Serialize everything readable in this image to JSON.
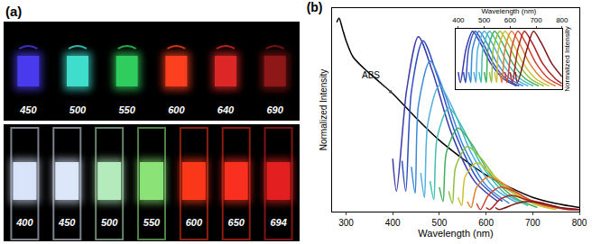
{
  "panel_a": {
    "title": "(a)",
    "rows": [
      {
        "labels": [
          450,
          500,
          550,
          600,
          640,
          690
        ],
        "colors": [
          "#4b3cf0",
          "#40e0d0",
          "#30d060",
          "#ff4020",
          "#e02828",
          "#901818"
        ]
      },
      {
        "labels": [
          400,
          450,
          500,
          550,
          600,
          650,
          694
        ],
        "colors": [
          "#dde8ff",
          "#e0ecff",
          "#b8f0c0",
          "#8ee87a",
          "#ff3a1a",
          "#ff3020",
          "#e82020"
        ]
      }
    ]
  },
  "chart_data": [
    {
      "type": "line",
      "title": "(b)",
      "x_label": "Wavelength (nm)",
      "y_label": "Normalized Intensity",
      "xlim": [
        270,
        800
      ],
      "xticks": [
        300,
        400,
        500,
        600,
        700,
        800
      ],
      "ylim": [
        0,
        1
      ],
      "tick_labels": "x",
      "grid": false,
      "annotations": [
        {
          "text": "ABS",
          "x": 400,
          "y": 0.58
        }
      ],
      "series": [
        {
          "color": "#000000",
          "x": [
            280,
            285,
            292,
            300,
            315,
            340,
            370,
            400,
            450,
            500,
            550,
            600,
            650,
            700,
            750,
            800
          ],
          "values": [
            0.93,
            0.95,
            0.9,
            0.84,
            0.76,
            0.7,
            0.64,
            0.58,
            0.46,
            0.35,
            0.26,
            0.18,
            0.12,
            0.07,
            0.04,
            0.02
          ]
        },
        {
          "color": "#3a3aa8",
          "x": [
            400,
            408,
            430,
            455,
            485,
            525,
            575,
            625
          ],
          "values": [
            0.26,
            0.1,
            0.6,
            0.86,
            0.69,
            0.39,
            0.15,
            0.05
          ]
        },
        {
          "color": "#3050c0",
          "x": [
            420,
            428,
            440,
            465,
            495,
            535,
            585,
            635
          ],
          "values": [
            0.25,
            0.1,
            0.59,
            0.84,
            0.67,
            0.38,
            0.15,
            0.05
          ]
        },
        {
          "color": "#3a8ad8",
          "x": [
            440,
            448,
            455,
            480,
            510,
            550,
            600,
            650
          ],
          "values": [
            0.22,
            0.09,
            0.52,
            0.74,
            0.59,
            0.33,
            0.13,
            0.04
          ]
        },
        {
          "color": "#50b0e0",
          "x": [
            460,
            468,
            475,
            500,
            530,
            570,
            620,
            670
          ],
          "values": [
            0.19,
            0.07,
            0.43,
            0.62,
            0.5,
            0.28,
            0.11,
            0.04
          ]
        },
        {
          "color": "#40c0b0",
          "x": [
            480,
            488,
            495,
            520,
            550,
            590,
            640,
            690
          ],
          "values": [
            0.15,
            0.06,
            0.36,
            0.51,
            0.41,
            0.23,
            0.09,
            0.03
          ]
        },
        {
          "color": "#40b060",
          "x": [
            500,
            508,
            515,
            540,
            570,
            610,
            660,
            710
          ],
          "values": [
            0.12,
            0.05,
            0.29,
            0.41,
            0.33,
            0.18,
            0.07,
            0.02
          ]
        },
        {
          "color": "#90c040",
          "x": [
            520,
            528,
            535,
            560,
            590,
            630,
            680,
            730
          ],
          "values": [
            0.1,
            0.04,
            0.22,
            0.32,
            0.26,
            0.14,
            0.06,
            0.02
          ]
        },
        {
          "color": "#d0c030",
          "x": [
            540,
            548,
            555,
            580,
            610,
            650,
            700,
            750
          ],
          "values": [
            0.07,
            0.03,
            0.17,
            0.24,
            0.19,
            0.11,
            0.04,
            0.01
          ]
        },
        {
          "color": "#e08030",
          "x": [
            560,
            568,
            580,
            605,
            635,
            675,
            725,
            775
          ],
          "values": [
            0.05,
            0.02,
            0.12,
            0.17,
            0.14,
            0.08,
            0.03,
            0.01
          ]
        },
        {
          "color": "#d04030",
          "x": [
            580,
            588,
            605,
            630,
            660,
            700,
            750,
            800
          ],
          "values": [
            0.04,
            0.01,
            0.08,
            0.12,
            0.1,
            0.05,
            0.02,
            0.01
          ]
        },
        {
          "color": "#b02020",
          "x": [
            600,
            608,
            630,
            655,
            685,
            725,
            775,
            800
          ],
          "values": [
            0.02,
            0.01,
            0.06,
            0.08,
            0.06,
            0.04,
            0.01,
            0.01
          ]
        },
        {
          "color": "#801818",
          "x": [
            620,
            628,
            665,
            690,
            720,
            760,
            800
          ],
          "values": [
            0.02,
            0.01,
            0.04,
            0.05,
            0.04,
            0.02,
            0.01
          ]
        }
      ]
    },
    {
      "type": "line",
      "x_label": "Wavelength (nm)",
      "y_label": "Normalized Intensity",
      "xlim": [
        390,
        800
      ],
      "xticks": [
        400,
        500,
        600,
        700,
        800
      ],
      "ylim": [
        0,
        1.05
      ],
      "tick_labels": "x",
      "grid": false,
      "series": [
        {
          "color": "#3a3aa8",
          "x": [
            400,
            408,
            430,
            455,
            485,
            525,
            575,
            625
          ],
          "values": [
            0.3,
            0.12,
            0.7,
            1,
            0.8,
            0.45,
            0.18,
            0.06
          ]
        },
        {
          "color": "#3050c0",
          "x": [
            420,
            428,
            440,
            465,
            495,
            535,
            585,
            635
          ],
          "values": [
            0.3,
            0.12,
            0.7,
            1,
            0.8,
            0.45,
            0.18,
            0.06
          ]
        },
        {
          "color": "#3a8ad8",
          "x": [
            440,
            448,
            455,
            480,
            510,
            550,
            600,
            650
          ],
          "values": [
            0.3,
            0.12,
            0.7,
            1,
            0.8,
            0.45,
            0.18,
            0.06
          ]
        },
        {
          "color": "#50b0e0",
          "x": [
            460,
            468,
            475,
            500,
            530,
            570,
            620,
            670
          ],
          "values": [
            0.3,
            0.12,
            0.7,
            1,
            0.8,
            0.45,
            0.18,
            0.06
          ]
        },
        {
          "color": "#40c0b0",
          "x": [
            480,
            488,
            495,
            520,
            550,
            590,
            640,
            690
          ],
          "values": [
            0.3,
            0.12,
            0.7,
            1,
            0.8,
            0.45,
            0.18,
            0.06
          ]
        },
        {
          "color": "#40b060",
          "x": [
            500,
            508,
            515,
            540,
            570,
            610,
            660,
            710
          ],
          "values": [
            0.3,
            0.12,
            0.7,
            1,
            0.8,
            0.45,
            0.18,
            0.06
          ]
        },
        {
          "color": "#90c040",
          "x": [
            520,
            528,
            535,
            560,
            590,
            630,
            680,
            730
          ],
          "values": [
            0.3,
            0.12,
            0.7,
            1,
            0.8,
            0.45,
            0.18,
            0.06
          ]
        },
        {
          "color": "#d0c030",
          "x": [
            540,
            548,
            555,
            580,
            610,
            650,
            700,
            750
          ],
          "values": [
            0.3,
            0.12,
            0.7,
            1,
            0.8,
            0.45,
            0.18,
            0.06
          ]
        },
        {
          "color": "#e08030",
          "x": [
            560,
            568,
            580,
            605,
            635,
            675,
            725,
            775
          ],
          "values": [
            0.3,
            0.12,
            0.7,
            1,
            0.8,
            0.45,
            0.18,
            0.06
          ]
        },
        {
          "color": "#d04030",
          "x": [
            580,
            588,
            605,
            630,
            660,
            700,
            750,
            800
          ],
          "values": [
            0.3,
            0.12,
            0.7,
            1,
            0.8,
            0.45,
            0.18,
            0.06
          ]
        },
        {
          "color": "#b02020",
          "x": [
            600,
            608,
            630,
            655,
            685,
            725,
            775,
            800
          ],
          "values": [
            0.3,
            0.12,
            0.7,
            1,
            0.8,
            0.45,
            0.18,
            0.1
          ]
        },
        {
          "color": "#801818",
          "x": [
            620,
            628,
            665,
            690,
            720,
            760,
            800
          ],
          "values": [
            0.3,
            0.12,
            0.7,
            1,
            0.8,
            0.45,
            0.22
          ]
        }
      ]
    }
  ]
}
